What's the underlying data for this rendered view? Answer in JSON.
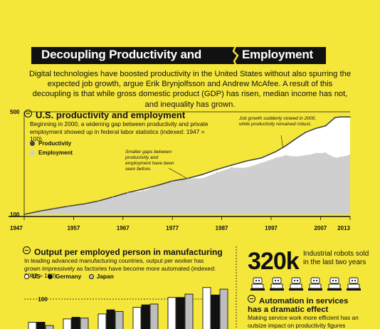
{
  "title": {
    "left": "Decoupling Productivity and",
    "right": "Employment"
  },
  "intro": "Digital technologies have boosted productivity in the United States without also spurring the expected job growth, argue Erik Brynjolfsson and Andrew McAfee. A result of this decoupling is that while gross domestic product (GDP) has risen, median income has not, and inequality has grown.",
  "colors": {
    "background": "#f5e63a",
    "productivity": "#444444",
    "employment": "#cfcfcf",
    "gap": "#ffffff",
    "us": "#ffffff",
    "germany": "#111111",
    "japan": "#bdbdbd"
  },
  "chart_data": [
    {
      "type": "area",
      "title": "U.S. productivity and employment",
      "subtitle": "Beginning in 2000, a widening gap between productivity and private employment showed up in federal labor statistics (indexed: 1947 = 100).",
      "xlabel": "",
      "ylabel": "",
      "xlim": [
        1947,
        2013
      ],
      "ylim": [
        100,
        500
      ],
      "x_ticks": [
        "1947",
        "1957",
        "1967",
        "1977",
        "1987",
        "1997",
        "2007",
        "2013"
      ],
      "y_ticks": [
        "500",
        "100"
      ],
      "grid": false,
      "legend_position": "top-left",
      "series": [
        {
          "name": "Productivity",
          "x": [
            1947,
            1950,
            1953,
            1956,
            1959,
            1962,
            1965,
            1968,
            1971,
            1974,
            1977,
            1980,
            1983,
            1986,
            1989,
            1992,
            1995,
            1998,
            2000,
            2002,
            2004,
            2006,
            2008,
            2010,
            2011,
            2013
          ],
          "values": [
            100,
            112,
            122,
            132,
            140,
            152,
            168,
            185,
            198,
            213,
            230,
            240,
            255,
            275,
            292,
            308,
            320,
            345,
            368,
            395,
            420,
            435,
            445,
            478,
            480,
            480
          ]
        },
        {
          "name": "Employment",
          "x": [
            1947,
            1950,
            1953,
            1956,
            1959,
            1962,
            1965,
            1968,
            1971,
            1974,
            1977,
            1980,
            1983,
            1986,
            1989,
            1992,
            1995,
            1998,
            2000,
            2002,
            2004,
            2006,
            2008,
            2010,
            2011,
            2013
          ],
          "values": [
            100,
            108,
            120,
            130,
            136,
            150,
            168,
            185,
            190,
            210,
            228,
            240,
            240,
            262,
            282,
            282,
            300,
            320,
            330,
            325,
            330,
            338,
            340,
            320,
            323,
            332
          ]
        }
      ],
      "annotations": [
        "Job growth suddenly slowed in 2000, while productivity remained robust.",
        "Smaller gaps between productivity and employment have been seen before."
      ]
    },
    {
      "type": "bar",
      "title": "Output per employed person in manufacturing",
      "subtitle": "In leading advanced manufacturing countries, output per worker has grown impressively as factories have become more automated (indexed: 2002 = 100).",
      "categories": [
        "",
        "",
        "",
        "",
        "",
        ""
      ],
      "series": [
        {
          "name": "US",
          "values": [
            44,
            52,
            64,
            80,
            104,
            128
          ]
        },
        {
          "name": "Germany",
          "values": [
            44,
            56,
            74,
            86,
            104,
            110
          ]
        },
        {
          "name": "Japan",
          "values": [
            36,
            54,
            70,
            88,
            112,
            124
          ]
        }
      ],
      "reference_line": "100",
      "grid": false,
      "legend_position": "top-left"
    }
  ],
  "stats": {
    "robots_value": "320k",
    "robots_label": "Industrial robots sold in the last two years"
  },
  "section3": {
    "title_line1": "Automation in services",
    "title_line2": "has a dramatic effect",
    "desc": "Making service work more efficient has an outsize impact on productivity figures"
  },
  "icons": [
    "minus-circle-icon",
    "robot-icon"
  ],
  "robot_count": 6
}
